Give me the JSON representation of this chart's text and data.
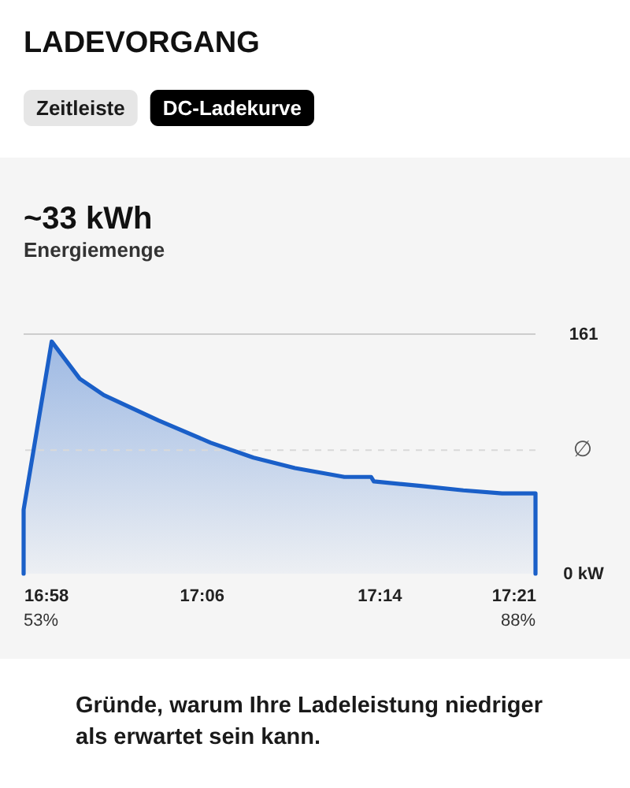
{
  "chart_data": {
    "type": "area",
    "title": "LADEVORGANG",
    "annotations": [
      "Zeitleiste",
      "DC-Ladekurve",
      "~33 kWh",
      "Energiemenge",
      "53%",
      "88%",
      "Gründe, warum Ihre Ladeleistung niedriger als erwartet sein kann."
    ],
    "x": [
      16.967,
      16.967,
      16.988,
      17.009,
      17.027,
      17.068,
      17.107,
      17.139,
      17.17,
      17.207,
      17.227,
      17.229,
      17.264,
      17.296,
      17.325,
      17.35,
      17.35
    ],
    "series": [
      {
        "color": "#1a5fc8",
        "values": [
          0,
          43,
          156,
          131,
          120,
          103,
          88,
          78,
          71,
          65,
          65,
          62,
          59,
          56,
          54,
          54,
          0
        ]
      }
    ],
    "xlim": [
      16.967,
      17.35
    ],
    "ylim": [
      0,
      161
    ],
    "xticks": [
      {
        "value": 16.967,
        "label": "16:58"
      },
      {
        "value": 17.1,
        "label": "17:06"
      },
      {
        "value": 17.233,
        "label": "17:14"
      },
      {
        "value": 17.35,
        "label": "17:21"
      }
    ],
    "yticks": [
      {
        "value": 0,
        "label": "0 kW"
      },
      161
    ],
    "ref_lines": [
      {
        "axis": "y",
        "value": 161,
        "color": "#cdcdcd",
        "line_style": "solid"
      },
      {
        "axis": "y",
        "value": 83,
        "label": "∅",
        "color": "#d9d9d9",
        "line_style": "dashed"
      }
    ]
  }
}
